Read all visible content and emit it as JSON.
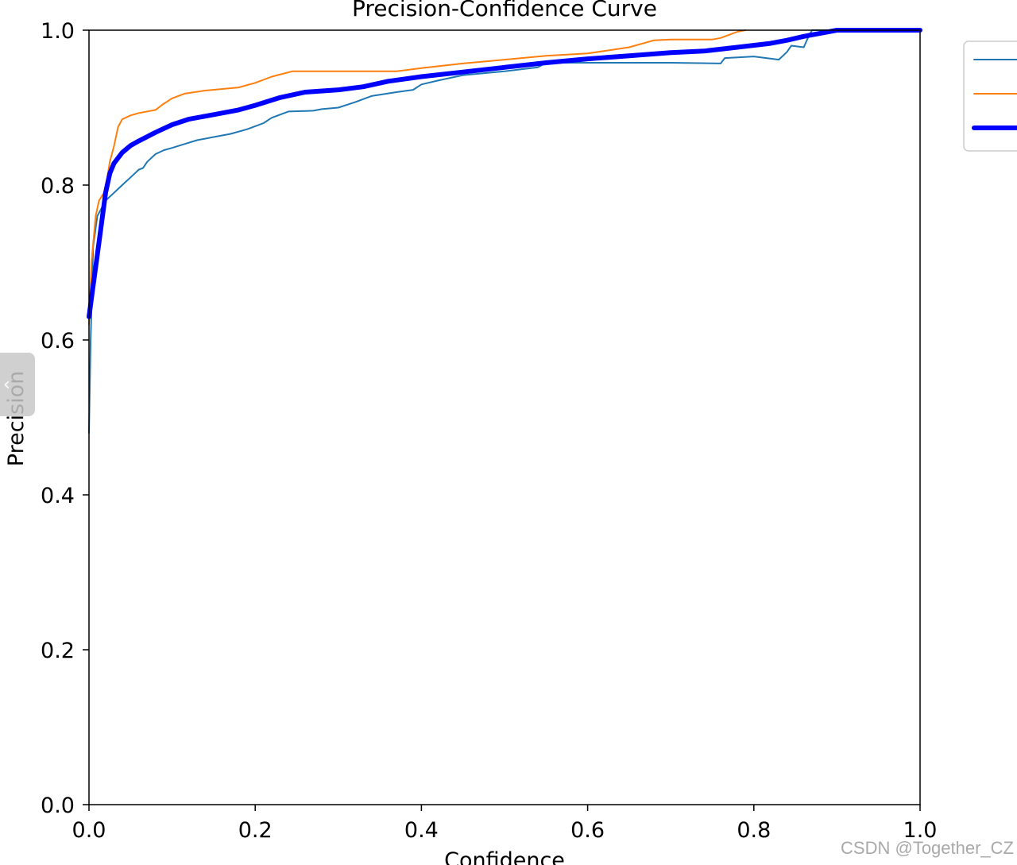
{
  "chart_data": {
    "type": "line",
    "title": "Precision-Confidence Curve",
    "xlabel": "Confidence",
    "ylabel": "Precision",
    "xlim": [
      0.0,
      1.0
    ],
    "ylim": [
      0.0,
      1.0
    ],
    "xticks": [
      "0.0",
      "0.2",
      "0.4",
      "0.6",
      "0.8",
      "1.0"
    ],
    "yticks": [
      "0.0",
      "0.2",
      "0.4",
      "0.6",
      "0.8",
      "1.0"
    ],
    "grid": false,
    "legend_position": "upper-right-outside",
    "series": [
      {
        "color": "#1f77b4",
        "x": [
          0.0,
          0.002,
          0.005,
          0.01,
          0.015,
          0.02,
          0.03,
          0.035,
          0.04,
          0.05,
          0.06,
          0.065,
          0.07,
          0.08,
          0.09,
          0.1,
          0.115,
          0.13,
          0.15,
          0.17,
          0.19,
          0.2,
          0.21,
          0.22,
          0.24,
          0.27,
          0.28,
          0.3,
          0.32,
          0.34,
          0.37,
          0.39,
          0.4,
          0.42,
          0.45,
          0.5,
          0.54,
          0.55,
          0.6,
          0.7,
          0.76,
          0.765,
          0.8,
          0.83,
          0.84,
          0.845,
          0.86,
          0.865,
          0.87,
          0.9,
          1.0
        ],
        "y": [
          0.48,
          0.6,
          0.72,
          0.76,
          0.77,
          0.78,
          0.79,
          0.795,
          0.8,
          0.81,
          0.82,
          0.822,
          0.83,
          0.84,
          0.845,
          0.848,
          0.853,
          0.858,
          0.862,
          0.866,
          0.872,
          0.876,
          0.88,
          0.887,
          0.895,
          0.896,
          0.898,
          0.9,
          0.907,
          0.915,
          0.92,
          0.923,
          0.93,
          0.935,
          0.942,
          0.947,
          0.952,
          0.958,
          0.958,
          0.958,
          0.957,
          0.964,
          0.966,
          0.962,
          0.972,
          0.98,
          0.978,
          0.99,
          1.0,
          1.0,
          1.0
        ]
      },
      {
        "color": "#ff7f0e",
        "x": [
          0.0,
          0.003,
          0.008,
          0.012,
          0.018,
          0.022,
          0.025,
          0.03,
          0.035,
          0.04,
          0.05,
          0.06,
          0.08,
          0.09,
          0.1,
          0.115,
          0.14,
          0.18,
          0.2,
          0.22,
          0.245,
          0.3,
          0.37,
          0.4,
          0.45,
          0.5,
          0.55,
          0.6,
          0.65,
          0.68,
          0.7,
          0.75,
          0.76,
          0.77,
          0.78,
          0.79
        ],
        "y": [
          0.62,
          0.7,
          0.76,
          0.78,
          0.79,
          0.81,
          0.83,
          0.85,
          0.875,
          0.885,
          0.89,
          0.893,
          0.897,
          0.905,
          0.912,
          0.918,
          0.922,
          0.926,
          0.932,
          0.94,
          0.947,
          0.947,
          0.947,
          0.951,
          0.957,
          0.962,
          0.967,
          0.97,
          0.978,
          0.987,
          0.988,
          0.988,
          0.99,
          0.994,
          0.998,
          1.0
        ]
      },
      {
        "color": "#0000ff",
        "bold": true,
        "x": [
          0.0,
          0.005,
          0.01,
          0.015,
          0.02,
          0.025,
          0.03,
          0.04,
          0.05,
          0.06,
          0.08,
          0.1,
          0.12,
          0.15,
          0.18,
          0.2,
          0.23,
          0.26,
          0.3,
          0.33,
          0.36,
          0.4,
          0.45,
          0.5,
          0.55,
          0.6,
          0.65,
          0.7,
          0.74,
          0.78,
          0.82,
          0.84,
          0.86,
          0.88,
          0.9,
          1.0
        ],
        "y": [
          0.63,
          0.67,
          0.71,
          0.75,
          0.79,
          0.815,
          0.828,
          0.842,
          0.851,
          0.857,
          0.868,
          0.878,
          0.885,
          0.891,
          0.897,
          0.903,
          0.913,
          0.92,
          0.923,
          0.927,
          0.934,
          0.94,
          0.946,
          0.952,
          0.958,
          0.963,
          0.967,
          0.971,
          0.973,
          0.978,
          0.983,
          0.987,
          0.992,
          0.996,
          1.0,
          1.0
        ]
      }
    ]
  },
  "watermark": "CSDN @Together_CZ",
  "nav": {
    "prev_glyph": "‹"
  }
}
